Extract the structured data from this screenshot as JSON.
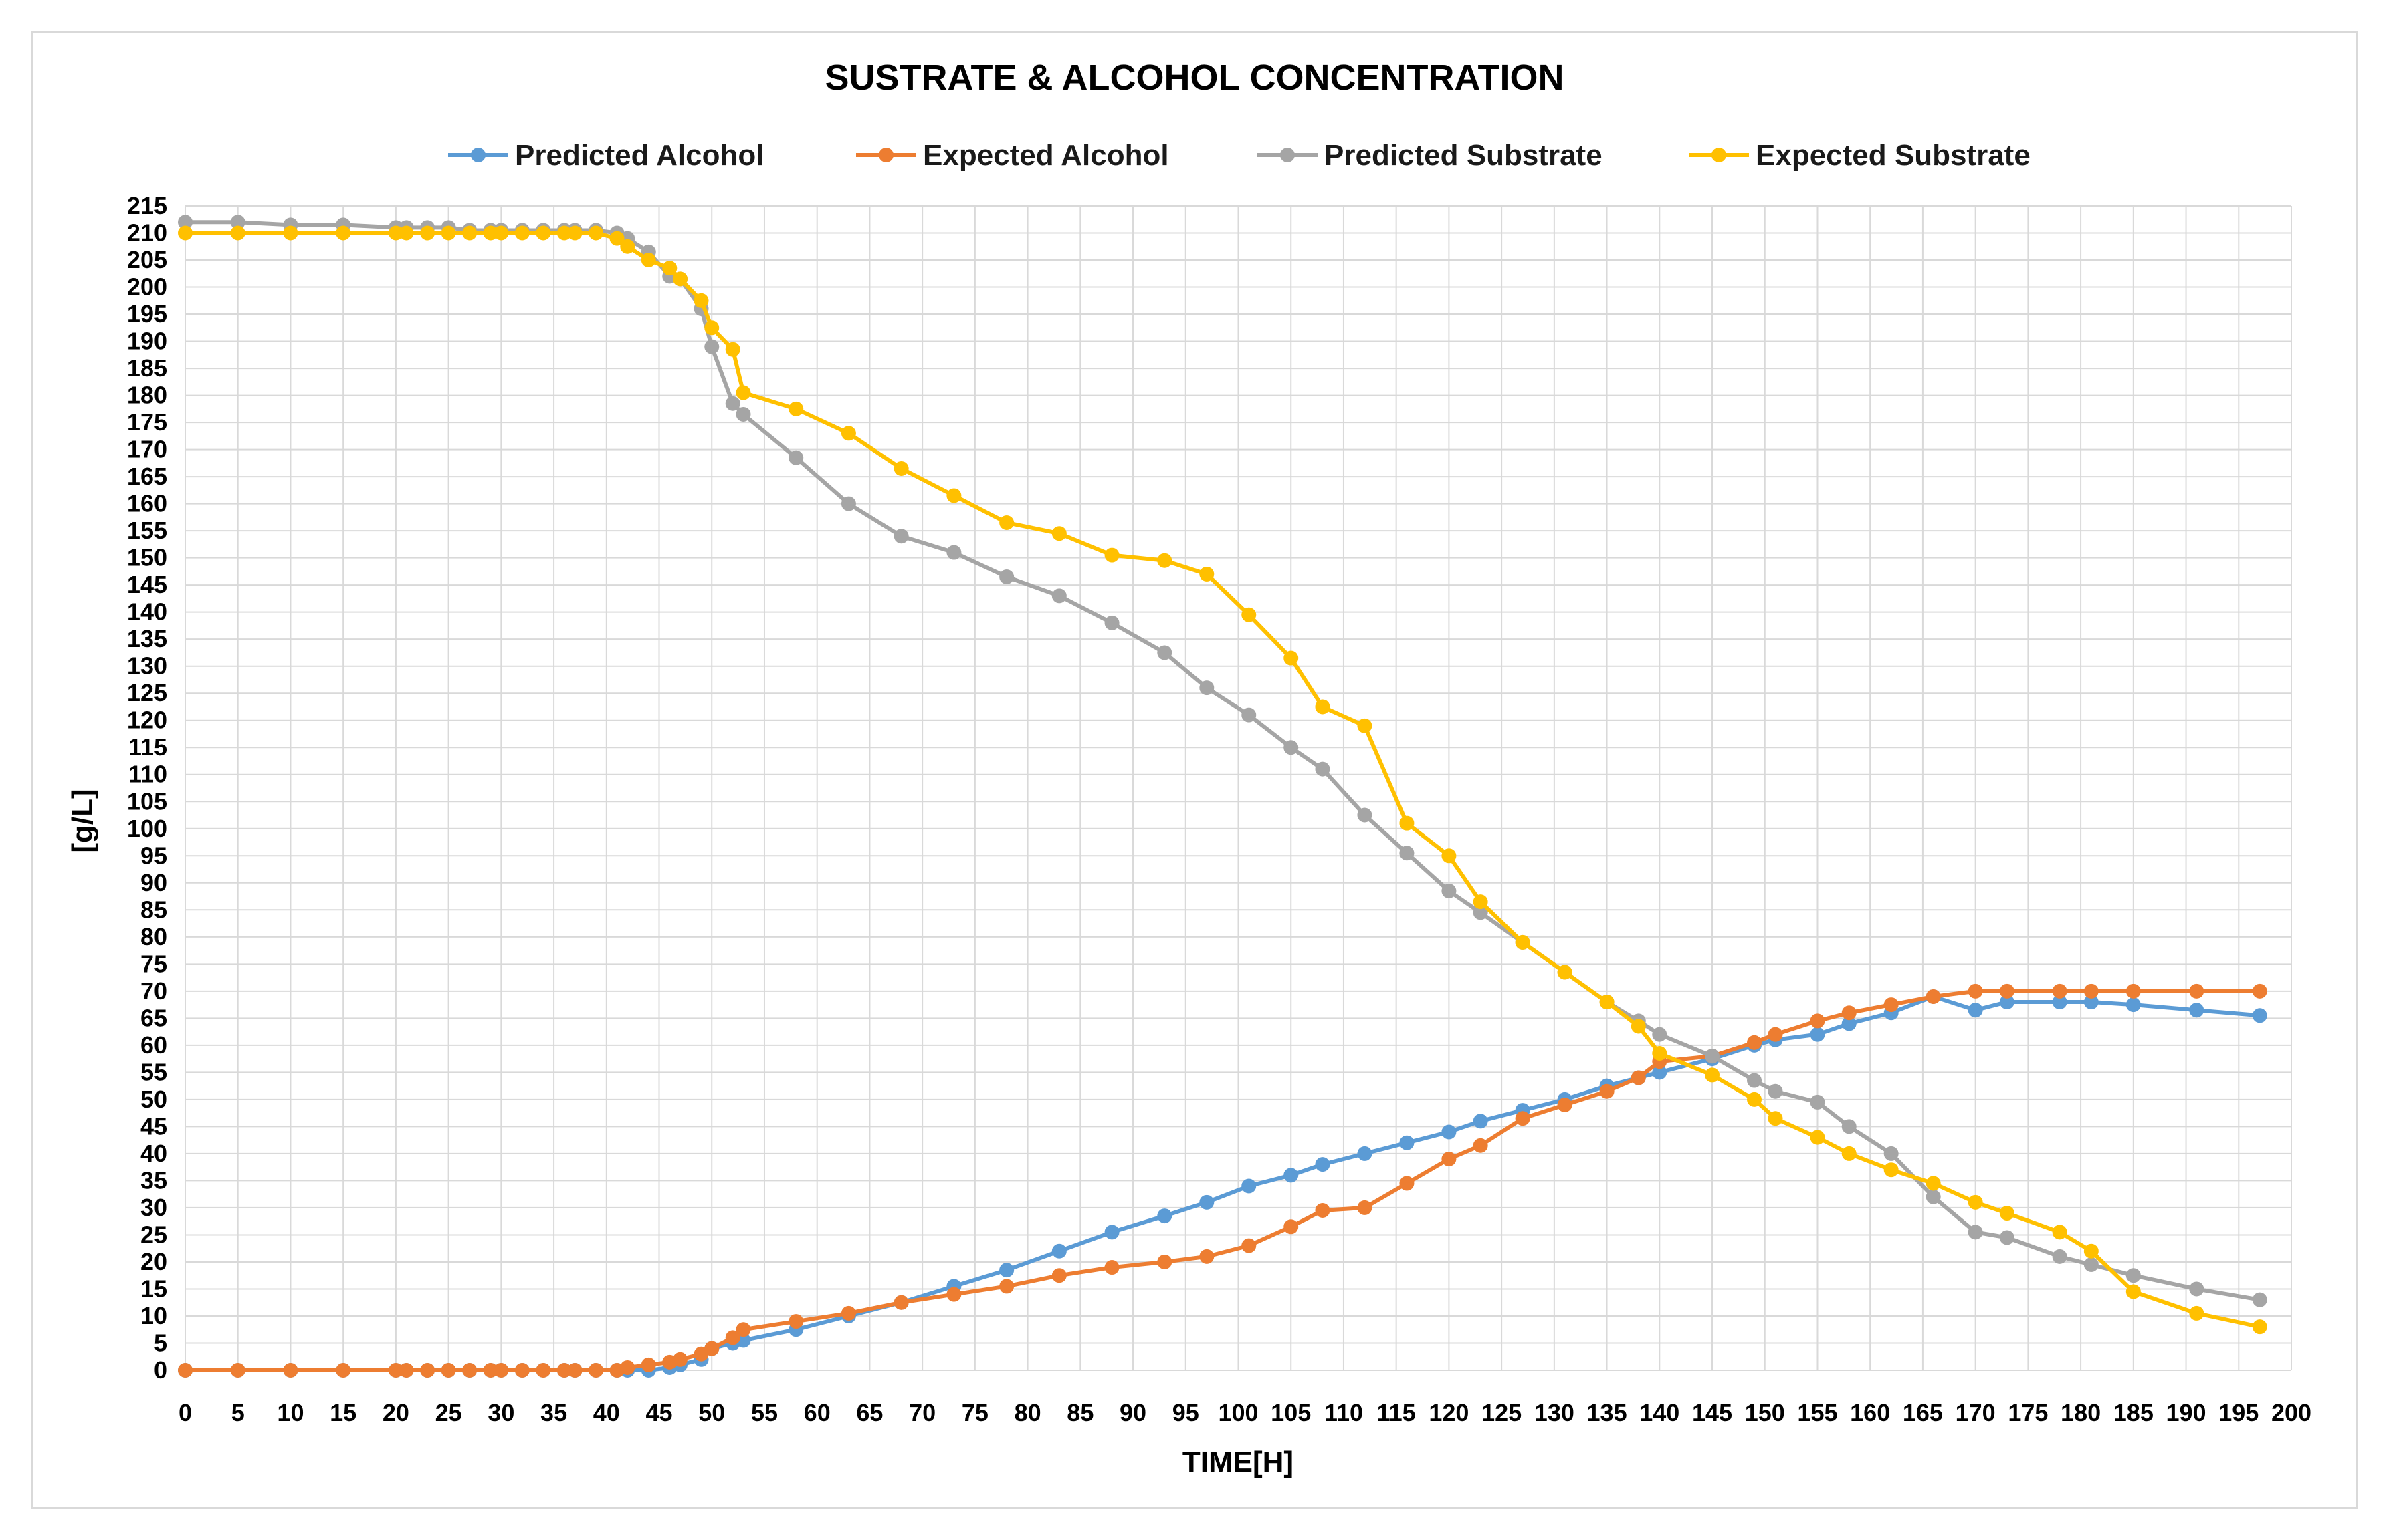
{
  "chart_data": {
    "type": "line",
    "title": "SUSTRATE & ALCOHOL CONCENTRATION",
    "xlabel": "TIME[H]",
    "ylabel": "[g/L]",
    "xlim": [
      0,
      200
    ],
    "ylim": [
      0,
      215
    ],
    "x_ticks": [
      0,
      5,
      10,
      15,
      20,
      25,
      30,
      35,
      40,
      45,
      50,
      55,
      60,
      65,
      70,
      75,
      80,
      85,
      90,
      95,
      100,
      105,
      110,
      115,
      120,
      125,
      130,
      135,
      140,
      145,
      150,
      155,
      160,
      165,
      170,
      175,
      180,
      185,
      190,
      195,
      200
    ],
    "y_ticks": [
      0,
      5,
      10,
      15,
      20,
      25,
      30,
      35,
      40,
      45,
      50,
      55,
      60,
      65,
      70,
      75,
      80,
      85,
      90,
      95,
      100,
      105,
      110,
      115,
      120,
      125,
      130,
      135,
      140,
      145,
      150,
      155,
      160,
      165,
      170,
      175,
      180,
      185,
      190,
      195,
      200,
      205,
      210,
      215
    ],
    "grid": true,
    "legend_position": "top",
    "series": [
      {
        "name": "Predicted Alcohol",
        "color": "#5b9bd5",
        "x": [
          0,
          5,
          10,
          15,
          20,
          21,
          23,
          25,
          27,
          29,
          30,
          32,
          34,
          36,
          37,
          39,
          41,
          42,
          44,
          46,
          47,
          49,
          50,
          52,
          53,
          58,
          63,
          68,
          73,
          78,
          83,
          88,
          93,
          97,
          101,
          105,
          108,
          112,
          116,
          120,
          123,
          127,
          131,
          135,
          138,
          140,
          145,
          149,
          151,
          155,
          158,
          162,
          166,
          170,
          173,
          178,
          181,
          185,
          191,
          197
        ],
        "y": [
          0,
          0,
          0,
          0,
          0,
          0,
          0,
          0,
          0,
          0,
          0,
          0,
          0,
          0,
          0,
          0,
          0,
          0,
          0,
          0.5,
          1,
          2,
          4,
          5,
          5.5,
          7.5,
          10,
          12.5,
          15.5,
          18.5,
          22,
          25.5,
          28.5,
          31,
          34,
          36,
          38,
          40,
          42,
          44,
          46,
          48,
          50,
          52.5,
          54,
          55,
          57.5,
          60,
          61,
          62,
          64,
          66,
          69,
          66.5,
          68,
          68,
          68,
          67.5,
          66.5,
          65.5
        ]
      },
      {
        "name": "Expected Alcohol",
        "color": "#ed7d31",
        "x": [
          0,
          5,
          10,
          15,
          20,
          21,
          23,
          25,
          27,
          29,
          30,
          32,
          34,
          36,
          37,
          39,
          41,
          42,
          44,
          46,
          47,
          49,
          50,
          52,
          53,
          58,
          63,
          68,
          73,
          78,
          83,
          88,
          93,
          97,
          101,
          105,
          108,
          112,
          116,
          120,
          123,
          127,
          131,
          135,
          138,
          140,
          145,
          149,
          151,
          155,
          158,
          162,
          166,
          170,
          173,
          178,
          181,
          185,
          191,
          197
        ],
        "y": [
          0,
          0,
          0,
          0,
          0,
          0,
          0,
          0,
          0,
          0,
          0,
          0,
          0,
          0,
          0,
          0,
          0,
          0.5,
          1,
          1.5,
          2,
          3,
          4,
          6,
          7.5,
          9,
          10.5,
          12.5,
          14,
          15.5,
          17.5,
          19,
          20,
          21,
          23,
          26.5,
          29.5,
          30,
          34.5,
          39,
          41.5,
          46.5,
          49,
          51.5,
          54,
          57,
          58,
          60.5,
          62,
          64.5,
          66,
          67.5,
          69,
          70,
          70,
          70,
          70,
          70,
          70,
          70
        ]
      },
      {
        "name": "Predicted Substrate",
        "color": "#a5a5a5",
        "x": [
          0,
          5,
          10,
          15,
          20,
          21,
          23,
          25,
          27,
          29,
          30,
          32,
          34,
          36,
          37,
          39,
          41,
          42,
          44,
          46,
          47,
          49,
          50,
          52,
          53,
          58,
          63,
          68,
          73,
          78,
          83,
          88,
          93,
          97,
          101,
          105,
          108,
          112,
          116,
          120,
          123,
          127,
          131,
          135,
          138,
          140,
          145,
          149,
          151,
          155,
          158,
          162,
          166,
          170,
          173,
          178,
          181,
          185,
          191,
          197
        ],
        "y": [
          212,
          212,
          211.5,
          211.5,
          211,
          211,
          211,
          211,
          210.5,
          210.5,
          210.5,
          210.5,
          210.5,
          210.5,
          210.5,
          210.5,
          210,
          209,
          206.5,
          202,
          201.5,
          196,
          189,
          178.5,
          176.5,
          168.5,
          160,
          154,
          151,
          146.5,
          143,
          138,
          132.5,
          126,
          121,
          115,
          111,
          102.5,
          95.5,
          88.5,
          84.5,
          79,
          73.5,
          68,
          64.5,
          62,
          58,
          53.5,
          51.5,
          49.5,
          45,
          40,
          32,
          25.5,
          24.5,
          21,
          19.5,
          17.5,
          15,
          13
        ]
      },
      {
        "name": "Expected Substrate",
        "color": "#ffc000",
        "x": [
          0,
          5,
          10,
          15,
          20,
          21,
          23,
          25,
          27,
          29,
          30,
          32,
          34,
          36,
          37,
          39,
          41,
          42,
          44,
          46,
          47,
          49,
          50,
          52,
          53,
          58,
          63,
          68,
          73,
          78,
          83,
          88,
          93,
          97,
          101,
          105,
          108,
          112,
          116,
          120,
          123,
          127,
          131,
          135,
          138,
          140,
          145,
          149,
          151,
          155,
          158,
          162,
          166,
          170,
          173,
          178,
          181,
          185,
          191,
          197
        ],
        "y": [
          210,
          210,
          210,
          210,
          210,
          210,
          210,
          210,
          210,
          210,
          210,
          210,
          210,
          210,
          210,
          210,
          209,
          207.5,
          205,
          203.5,
          201.5,
          197.5,
          192.5,
          188.5,
          180.5,
          177.5,
          173,
          166.5,
          161.5,
          156.5,
          154.5,
          150.5,
          149.5,
          147,
          139.5,
          131.5,
          122.5,
          119,
          101,
          95,
          86.5,
          79,
          73.5,
          68,
          63.5,
          58.5,
          54.5,
          50,
          46.5,
          43,
          40,
          37,
          34.5,
          31,
          29,
          25.5,
          22,
          14.5,
          10.5,
          8
        ]
      }
    ]
  }
}
